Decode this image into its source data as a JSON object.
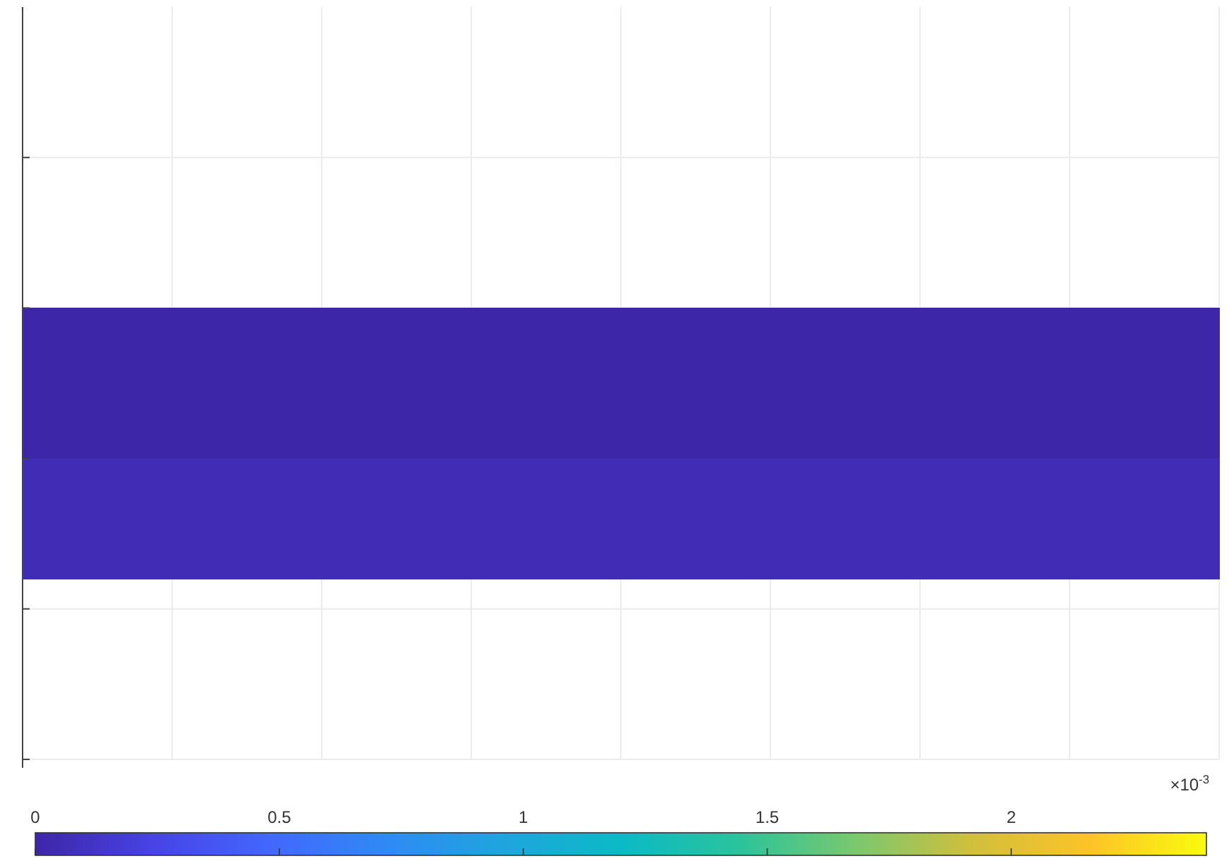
{
  "chart_data": {
    "type": "heatmap",
    "categories": [
      null,
      null,
      null,
      null,
      null,
      null,
      null,
      null
    ],
    "y_categories": [
      null,
      null,
      null,
      null,
      null,
      null,
      null,
      null,
      null
    ],
    "cells": [
      [
        0,
        0,
        0,
        0,
        0,
        0,
        0,
        0
      ],
      [
        0,
        0,
        0,
        0,
        0,
        0,
        0,
        0
      ],
      [
        0,
        0,
        0,
        0,
        0,
        0,
        0,
        0
      ],
      [
        0,
        0,
        0,
        0,
        0,
        0,
        0,
        0
      ],
      [
        0,
        0,
        0,
        0,
        0,
        0,
        0,
        0
      ],
      [
        0.05,
        0.05,
        0.05,
        0.05,
        0.05,
        0.05,
        0.05,
        0.05
      ],
      [
        0.05,
        0.05,
        0.05,
        0.05,
        0.05,
        0.05,
        0.05,
        0.05
      ],
      [
        0.05,
        0.05,
        0.05,
        0.05,
        0.05,
        0.05,
        0.05,
        0.05
      ],
      [
        0.05,
        0.05,
        0.05,
        0.05,
        0.05,
        0.05,
        0.05,
        0.05
      ]
    ],
    "clim": [
      0,
      2.4
    ],
    "cticks": [
      0,
      0.5,
      1,
      1.5,
      2
    ],
    "annotations": [
      "×10$^{-3}$"
    ],
    "grid": true
  }
}
